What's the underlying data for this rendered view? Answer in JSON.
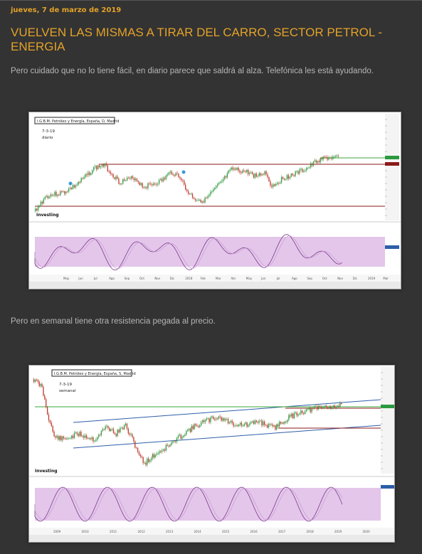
{
  "post": {
    "date": "jueves, 7 de marzo de 2019",
    "title": "VUELVEN LAS MISMAS A TIRAR DEL CARRO, SECTOR PETROL - ENERGIA",
    "paragraph1": "Pero cuidado que no lo tiene fácil, en diario parece que saldrá al alza. Telefónica les está ayudando.",
    "paragraph2": "Pero en semanal tiene otra resistencia pegada al precio."
  },
  "charts": [
    {
      "instrument": "I.G.B.M. Petróleo y Energía, España, D, Madrid",
      "date_note": "7-3-19",
      "timeframe": "diario",
      "brand": "Investing",
      "x_labels": [
        "May",
        "Jun",
        "Jul",
        "Ago",
        "Sep",
        "Oct",
        "Nov",
        "Dic",
        "2018",
        "Feb",
        "Mar",
        "Abr",
        "May",
        "Jun",
        "Jul",
        "Ago",
        "Sep",
        "Oct",
        "Nov",
        "Dic",
        "2019",
        "Mar"
      ],
      "colors": {
        "price": "#2b9a3f",
        "support": "#8b1a1a",
        "resistance": "#3aa63a",
        "stoch_band": "#e4c6ea",
        "stoch_line": "#7a3a8a"
      }
    },
    {
      "instrument": "I.G.B.M. Petróleo y Energía, España, S, Madrid",
      "date_note": "7-3-19",
      "timeframe": "semanal",
      "brand": "Investing",
      "x_labels": [
        "2009",
        "2010",
        "2011",
        "2012",
        "2013",
        "2014",
        "2015",
        "2016",
        "2017",
        "2018",
        "2019",
        "2020"
      ],
      "colors": {
        "price": "#2b9a3f",
        "channel": "#2e5ea8",
        "support": "#8b1a1a",
        "resistance": "#3aa63a",
        "stoch_band": "#e4c6ea",
        "stoch_line": "#7a3a8a"
      }
    }
  ]
}
